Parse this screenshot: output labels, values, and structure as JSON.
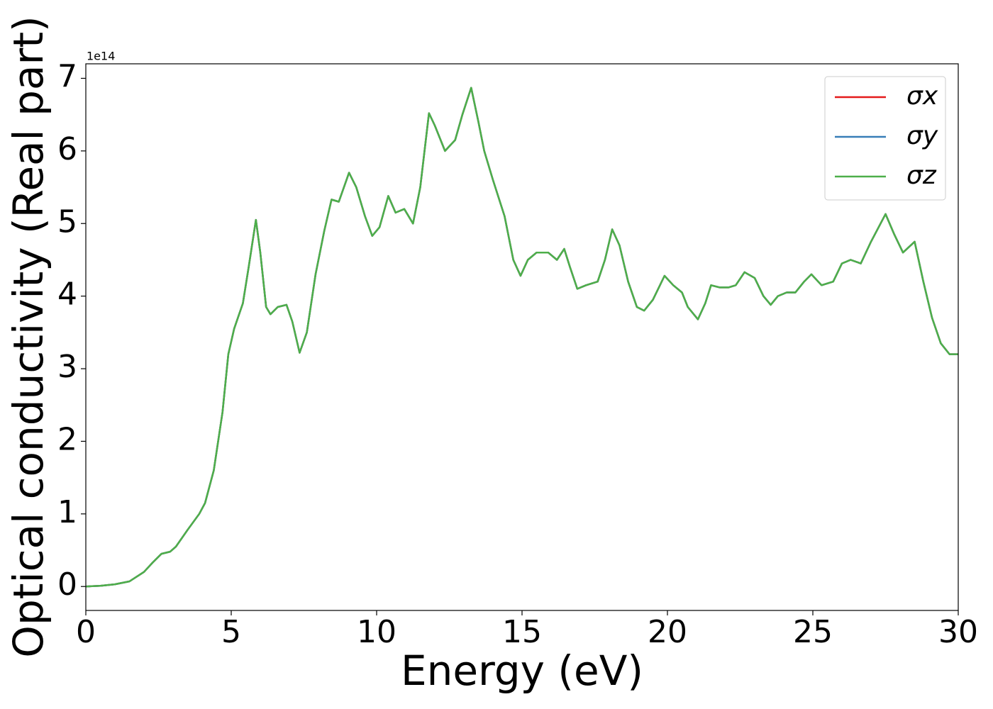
{
  "chart_data": {
    "type": "line",
    "xlabel": "Energy (eV)",
    "ylabel": "Optical conductivity (Real part)",
    "y_offset_label": "1e14",
    "x": [
      0,
      0.5,
      1,
      1.5,
      2,
      2.3,
      2.6,
      2.9,
      3.1,
      3.5,
      3.9,
      4.1,
      4.4,
      4.7,
      4.9,
      5.1,
      5.4,
      5.6,
      5.85,
      6.0,
      6.2,
      6.35,
      6.6,
      6.9,
      7.1,
      7.35,
      7.6,
      7.9,
      8.2,
      8.45,
      8.7,
      9.05,
      9.3,
      9.6,
      9.85,
      10.1,
      10.4,
      10.65,
      10.95,
      11.25,
      11.5,
      11.8,
      12.0,
      12.35,
      12.7,
      12.95,
      13.25,
      13.5,
      13.7,
      14.0,
      14.4,
      14.7,
      14.95,
      15.2,
      15.5,
      15.9,
      16.2,
      16.45,
      16.65,
      16.9,
      17.2,
      17.6,
      17.85,
      18.1,
      18.35,
      18.65,
      18.95,
      19.2,
      19.5,
      19.9,
      20.2,
      20.5,
      20.7,
      21.05,
      21.3,
      21.5,
      21.8,
      22.1,
      22.35,
      22.65,
      23.0,
      23.3,
      23.55,
      23.8,
      24.1,
      24.4,
      24.7,
      24.95,
      25.3,
      25.7,
      26.0,
      26.3,
      26.65,
      27.0,
      27.5,
      27.8,
      28.1,
      28.5,
      28.8,
      29.1,
      29.4,
      29.7,
      30
    ],
    "series": [
      {
        "name": "σx",
        "color": "#e41a1c",
        "values": [
          0,
          0.01,
          0.03,
          0.07,
          0.2,
          0.33,
          0.45,
          0.48,
          0.55,
          0.78,
          1.0,
          1.15,
          1.6,
          2.4,
          3.2,
          3.55,
          3.9,
          4.4,
          5.05,
          4.6,
          3.85,
          3.75,
          3.85,
          3.88,
          3.65,
          3.22,
          3.5,
          4.3,
          4.9,
          5.33,
          5.3,
          5.7,
          5.5,
          5.1,
          4.83,
          4.95,
          5.38,
          5.15,
          5.2,
          5.0,
          5.5,
          6.52,
          6.35,
          6.0,
          6.15,
          6.5,
          6.87,
          6.4,
          6.0,
          5.6,
          5.1,
          4.5,
          4.28,
          4.5,
          4.6,
          4.6,
          4.5,
          4.65,
          4.4,
          4.1,
          4.15,
          4.2,
          4.5,
          4.92,
          4.7,
          4.2,
          3.85,
          3.8,
          3.95,
          4.28,
          4.15,
          4.05,
          3.85,
          3.68,
          3.9,
          4.15,
          4.12,
          4.12,
          4.15,
          4.33,
          4.25,
          4.0,
          3.88,
          4.0,
          4.05,
          4.05,
          4.2,
          4.3,
          4.15,
          4.2,
          4.45,
          4.5,
          4.45,
          4.75,
          5.13,
          4.85,
          4.6,
          4.75,
          4.2,
          3.7,
          3.35,
          3.2,
          3.2
        ]
      },
      {
        "name": "σy",
        "color": "#377eb8",
        "values": [
          0,
          0.01,
          0.03,
          0.07,
          0.2,
          0.33,
          0.45,
          0.48,
          0.55,
          0.78,
          1.0,
          1.15,
          1.6,
          2.4,
          3.2,
          3.55,
          3.9,
          4.4,
          5.05,
          4.6,
          3.85,
          3.75,
          3.85,
          3.88,
          3.65,
          3.22,
          3.5,
          4.3,
          4.9,
          5.33,
          5.3,
          5.7,
          5.5,
          5.1,
          4.83,
          4.95,
          5.38,
          5.15,
          5.2,
          5.0,
          5.5,
          6.52,
          6.35,
          6.0,
          6.15,
          6.5,
          6.87,
          6.4,
          6.0,
          5.6,
          5.1,
          4.5,
          4.28,
          4.5,
          4.6,
          4.6,
          4.5,
          4.65,
          4.4,
          4.1,
          4.15,
          4.2,
          4.5,
          4.92,
          4.7,
          4.2,
          3.85,
          3.8,
          3.95,
          4.28,
          4.15,
          4.05,
          3.85,
          3.68,
          3.9,
          4.15,
          4.12,
          4.12,
          4.15,
          4.33,
          4.25,
          4.0,
          3.88,
          4.0,
          4.05,
          4.05,
          4.2,
          4.3,
          4.15,
          4.2,
          4.45,
          4.5,
          4.45,
          4.75,
          5.13,
          4.85,
          4.6,
          4.75,
          4.2,
          3.7,
          3.35,
          3.2,
          3.2
        ]
      },
      {
        "name": "σz",
        "color": "#4daf4a",
        "values": [
          0,
          0.01,
          0.03,
          0.07,
          0.2,
          0.33,
          0.45,
          0.48,
          0.55,
          0.78,
          1.0,
          1.15,
          1.6,
          2.4,
          3.2,
          3.55,
          3.9,
          4.4,
          5.05,
          4.6,
          3.85,
          3.75,
          3.85,
          3.88,
          3.65,
          3.22,
          3.5,
          4.3,
          4.9,
          5.33,
          5.3,
          5.7,
          5.5,
          5.1,
          4.83,
          4.95,
          5.38,
          5.15,
          5.2,
          5.0,
          5.5,
          6.52,
          6.35,
          6.0,
          6.15,
          6.5,
          6.87,
          6.4,
          6.0,
          5.6,
          5.1,
          4.5,
          4.28,
          4.5,
          4.6,
          4.6,
          4.5,
          4.65,
          4.4,
          4.1,
          4.15,
          4.2,
          4.5,
          4.92,
          4.7,
          4.2,
          3.85,
          3.8,
          3.95,
          4.28,
          4.15,
          4.05,
          3.85,
          3.68,
          3.9,
          4.15,
          4.12,
          4.12,
          4.15,
          4.33,
          4.25,
          4.0,
          3.88,
          4.0,
          4.05,
          4.05,
          4.2,
          4.3,
          4.15,
          4.2,
          4.45,
          4.5,
          4.45,
          4.75,
          5.13,
          4.85,
          4.6,
          4.75,
          4.2,
          3.7,
          3.35,
          3.2,
          3.2
        ]
      }
    ],
    "xlim": [
      0,
      30
    ],
    "xticks": [
      0,
      5,
      10,
      15,
      20,
      25,
      30
    ],
    "ylim": [
      -0.33,
      7.2
    ],
    "yticks": [
      0,
      1,
      2,
      3,
      4,
      5,
      6,
      7
    ],
    "legend": "upper right",
    "grid": false
  }
}
